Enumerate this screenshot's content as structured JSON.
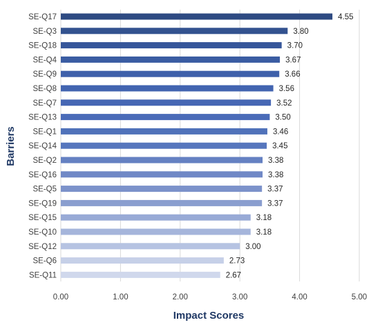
{
  "chart_data": {
    "type": "bar",
    "orientation": "horizontal",
    "categories": [
      "SE-Q17",
      "SE-Q3",
      "SE-Q18",
      "SE-Q4",
      "SE-Q9",
      "SE-Q8",
      "SE-Q7",
      "SE-Q13",
      "SE-Q1",
      "SE-Q14",
      "SE-Q2",
      "SE-Q16",
      "SE-Q5",
      "SE-Q19",
      "SE-Q15",
      "SE-Q10",
      "SE-Q12",
      "SE-Q6",
      "SE-Q11"
    ],
    "values": [
      4.55,
      3.8,
      3.7,
      3.67,
      3.66,
      3.56,
      3.52,
      3.5,
      3.46,
      3.45,
      3.38,
      3.38,
      3.37,
      3.37,
      3.18,
      3.18,
      3.0,
      2.73,
      2.67
    ],
    "value_labels": [
      "4.55",
      "3.80",
      "3.70",
      "3.67",
      "3.66",
      "3.56",
      "3.52",
      "3.50",
      "3.46",
      "3.45",
      "3.38",
      "3.38",
      "3.37",
      "3.37",
      "3.18",
      "3.18",
      "3.00",
      "2.73",
      "2.67"
    ],
    "bar_colors": [
      "#2e4a82",
      "#33528f",
      "#36569a",
      "#3a5ca2",
      "#3e60aa",
      "#4264b0",
      "#4667b4",
      "#4a6bb8",
      "#5072ba",
      "#5676bd",
      "#6581c2",
      "#7088c6",
      "#7c92ca",
      "#8a9ecf",
      "#98aad6",
      "#a5b5db",
      "#b6c3e2",
      "#c6d0e8",
      "#d0d8ec"
    ],
    "xlim": [
      0,
      5
    ],
    "x_ticks": [
      "0.00",
      "1.00",
      "2.00",
      "3.00",
      "4.00",
      "5.00"
    ],
    "x_tick_values": [
      0,
      1,
      2,
      3,
      4,
      5
    ],
    "xlabel": "Impact Scores",
    "ylabel": "Barriers",
    "grid": "vertical",
    "colors": {
      "grid": "#d9d9d9",
      "axis_title": "#1f3864"
    }
  }
}
